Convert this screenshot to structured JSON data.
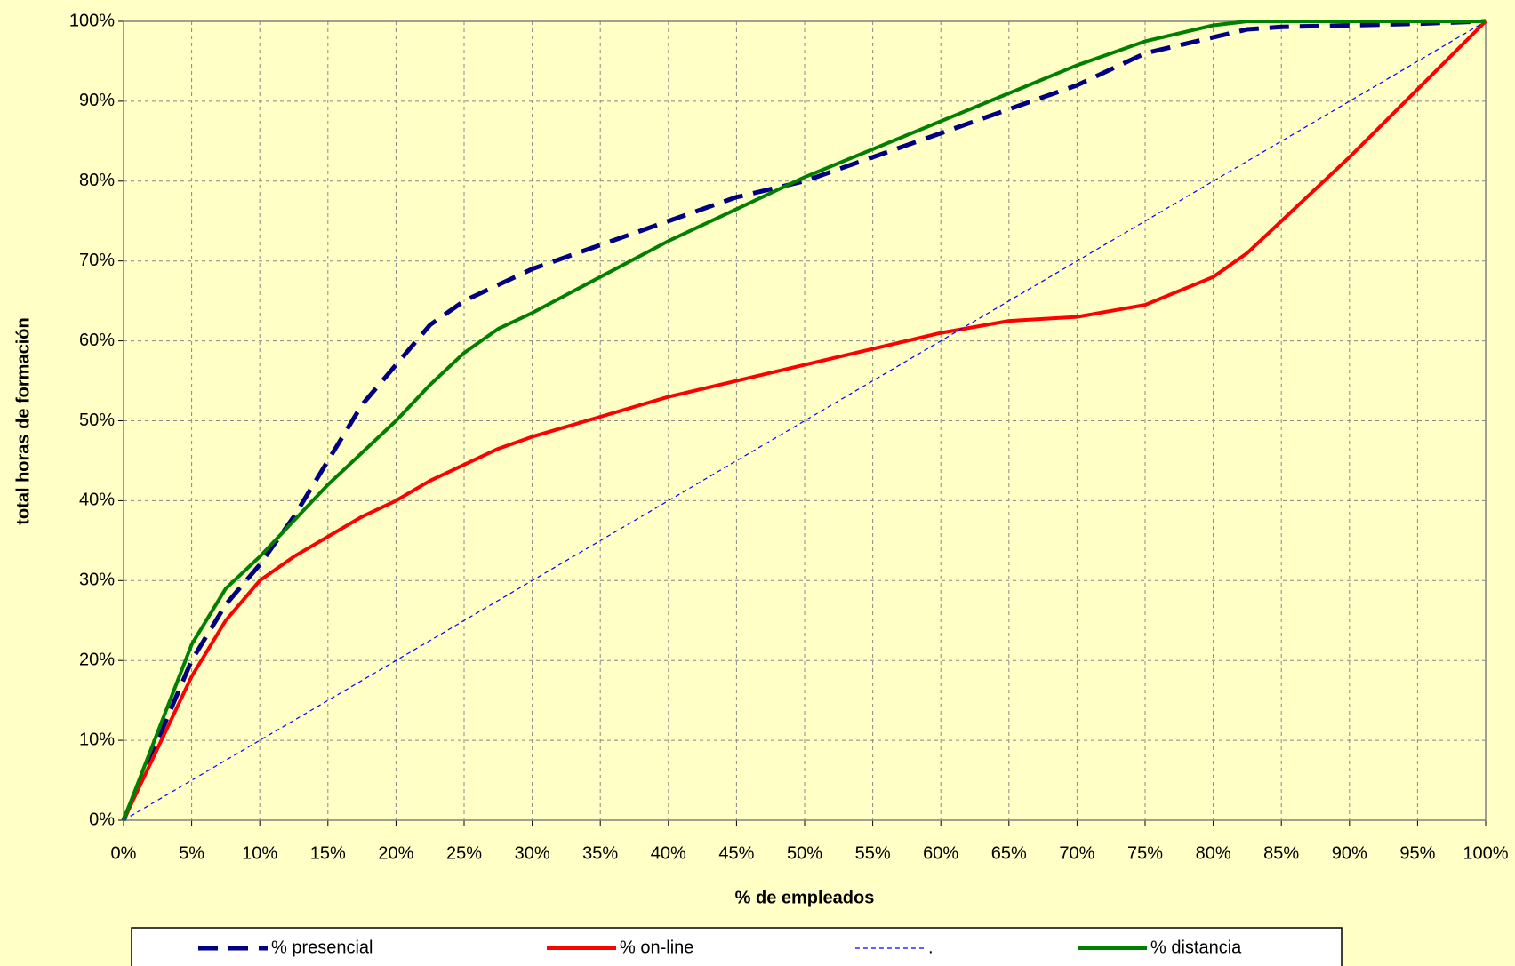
{
  "chart_data": {
    "type": "line",
    "x_label": "% de empleados",
    "y_label": "total horas de formación",
    "x": [
      0,
      2.5,
      5,
      7.5,
      10,
      12.5,
      15,
      17.5,
      20,
      22.5,
      25,
      27.5,
      30,
      35,
      40,
      45,
      50,
      55,
      60,
      65,
      70,
      75,
      80,
      82.5,
      85,
      90,
      95,
      100
    ],
    "series": [
      {
        "name": "% presencial",
        "color": "#000080",
        "dash": "dashed",
        "width": 5,
        "values": [
          0,
          10,
          20,
          27,
          32,
          38,
          45,
          52,
          57,
          62,
          65,
          67,
          69,
          72,
          75,
          78,
          80,
          83,
          86,
          89,
          92,
          96,
          98,
          99,
          99.3,
          99.5,
          99.7,
          100
        ]
      },
      {
        "name": "% on-line",
        "color": "#ff0000",
        "dash": "solid",
        "width": 4,
        "values": [
          0,
          9,
          18,
          25,
          30,
          33,
          35.5,
          38,
          40,
          42.5,
          44.5,
          46.5,
          48,
          50.5,
          53,
          55,
          57,
          59,
          61,
          62.5,
          63,
          64.5,
          68,
          71,
          75,
          83,
          91.5,
          100
        ]
      },
      {
        "name": ".",
        "color": "#0000ff",
        "dash": "dotted",
        "width": 1.2,
        "values": [
          0,
          2.5,
          5,
          7.5,
          10,
          12.5,
          15,
          17.5,
          20,
          22.5,
          25,
          27.5,
          30,
          35,
          40,
          45,
          50,
          55,
          60,
          65,
          70,
          75,
          80,
          82.5,
          85,
          90,
          95,
          100
        ]
      },
      {
        "name": "% distancia",
        "color": "#008000",
        "dash": "solid",
        "width": 4,
        "values": [
          0,
          11,
          22,
          29,
          33,
          37.5,
          42,
          46,
          50,
          54.5,
          58.5,
          61.5,
          63.5,
          68,
          72.5,
          76.5,
          80.5,
          84,
          87.5,
          91,
          94.5,
          97.5,
          99.5,
          100,
          100,
          100,
          100,
          100
        ]
      }
    ],
    "xlim": [
      0,
      100
    ],
    "xticks": [
      {
        "value": 0,
        "label": "0%"
      },
      {
        "value": 5,
        "label": "5%"
      },
      {
        "value": 10,
        "label": "10%"
      },
      {
        "value": 15,
        "label": "15%"
      },
      {
        "value": 20,
        "label": "20%"
      },
      {
        "value": 25,
        "label": "25%"
      },
      {
        "value": 30,
        "label": "30%"
      },
      {
        "value": 35,
        "label": "35%"
      },
      {
        "value": 40,
        "label": "40%"
      },
      {
        "value": 45,
        "label": "45%"
      },
      {
        "value": 50,
        "label": "50%"
      },
      {
        "value": 55,
        "label": "55%"
      },
      {
        "value": 60,
        "label": "60%"
      },
      {
        "value": 65,
        "label": "65%"
      },
      {
        "value": 70,
        "label": "70%"
      },
      {
        "value": 75,
        "label": "75%"
      },
      {
        "value": 80,
        "label": "80%"
      },
      {
        "value": 85,
        "label": "85%"
      },
      {
        "value": 90,
        "label": "90%"
      },
      {
        "value": 95,
        "label": "95%"
      },
      {
        "value": 100,
        "label": "100%"
      }
    ],
    "ylim": [
      0,
      100
    ],
    "yticks": [
      {
        "value": 0,
        "label": "0%"
      },
      {
        "value": 10,
        "label": "10%"
      },
      {
        "value": 20,
        "label": "20%"
      },
      {
        "value": 30,
        "label": "30%"
      },
      {
        "value": 40,
        "label": "40%"
      },
      {
        "value": 50,
        "label": "50%"
      },
      {
        "value": 60,
        "label": "60%"
      },
      {
        "value": 70,
        "label": "70%"
      },
      {
        "value": 80,
        "label": "80%"
      },
      {
        "value": 90,
        "label": "90%"
      },
      {
        "value": 100,
        "label": "100%"
      }
    ],
    "grid": true,
    "legend": "bottom"
  }
}
